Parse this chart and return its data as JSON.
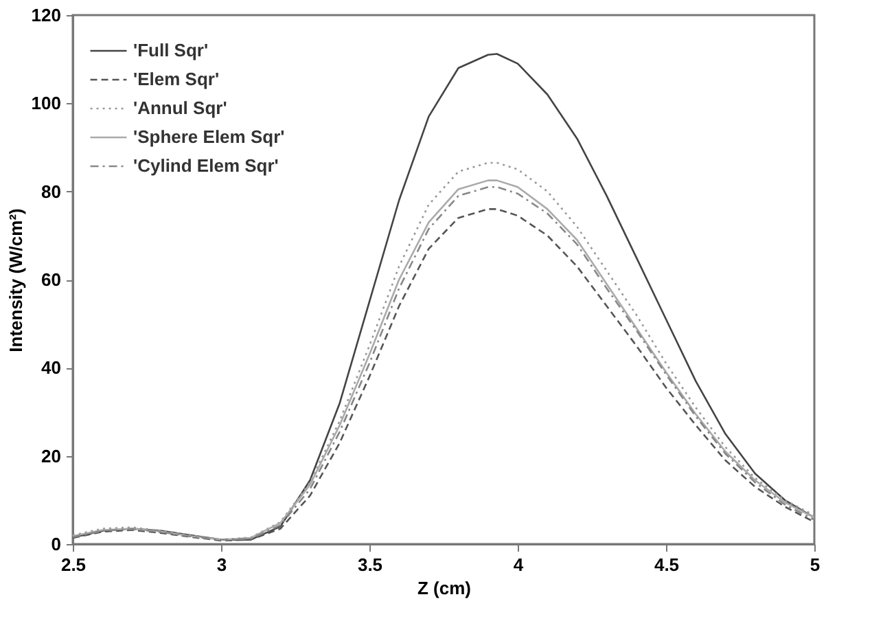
{
  "chart_data": {
    "type": "line",
    "xlabel": "Z (cm)",
    "ylabel": "Intensity (W/cm²)",
    "x": [
      2.5,
      2.6,
      2.7,
      2.8,
      2.9,
      3.0,
      3.1,
      3.2,
      3.3,
      3.4,
      3.5,
      3.6,
      3.7,
      3.8,
      3.9,
      3.93,
      4.0,
      4.1,
      4.2,
      4.3,
      4.4,
      4.5,
      4.6,
      4.7,
      4.8,
      4.9,
      5.0
    ],
    "series": [
      {
        "name": "'Full Sqr'",
        "color": "#444444",
        "line_style": "solid",
        "values": [
          1.5,
          3,
          3.5,
          3,
          2,
          1,
          1,
          4,
          14.5,
          32,
          55,
          78,
          97,
          108,
          111,
          111.2,
          109,
          102,
          92,
          79,
          65,
          51,
          37,
          25,
          16,
          10,
          6
        ]
      },
      {
        "name": "'Elem Sqr'",
        "color": "#555555",
        "line_style": "dashed",
        "values": [
          1.4,
          2.8,
          3.2,
          2.5,
          1.6,
          0.8,
          1,
          3.5,
          11,
          23,
          38,
          54,
          67,
          74,
          76,
          76,
          74.5,
          70,
          63,
          54,
          45,
          35.5,
          27,
          19,
          13,
          8.5,
          5
        ]
      },
      {
        "name": "'Annul Sqr'",
        "color": "#999999",
        "line_style": "dotted",
        "values": [
          2,
          3.5,
          3.8,
          3,
          2,
          1,
          1.5,
          5,
          14,
          28,
          45,
          63,
          77,
          84.5,
          86.5,
          86.5,
          85,
          80,
          72,
          62,
          52,
          41,
          31,
          22,
          15,
          10,
          6.5
        ]
      },
      {
        "name": "'Sphere Elem Sqr'",
        "color": "#aaaaaa",
        "line_style": "solid",
        "values": [
          1.8,
          3.2,
          3.5,
          2.8,
          1.8,
          1,
          1.4,
          4.8,
          13.5,
          27,
          43,
          60,
          73,
          80.5,
          82.5,
          82.5,
          81,
          76,
          69,
          59,
          49,
          39,
          29.5,
          21,
          14.5,
          9.5,
          6
        ]
      },
      {
        "name": "'Cylind Elem Sqr'",
        "color": "#888888",
        "line_style": "dashdot",
        "values": [
          1.6,
          3,
          3.4,
          2.7,
          1.7,
          1,
          1.2,
          4.3,
          12.5,
          25.5,
          41,
          58,
          71.5,
          79,
          81,
          81,
          79.5,
          75,
          68,
          58,
          48.5,
          38.5,
          29,
          20.5,
          14,
          9,
          5.5
        ]
      }
    ],
    "xlim": [
      2.5,
      5
    ],
    "xticks": [
      2.5,
      3,
      3.5,
      4,
      4.5,
      5
    ],
    "ylim": [
      0,
      120
    ],
    "yticks": [
      0,
      20,
      40,
      60,
      80,
      100,
      120
    ],
    "grid": false,
    "legend": "top left"
  }
}
